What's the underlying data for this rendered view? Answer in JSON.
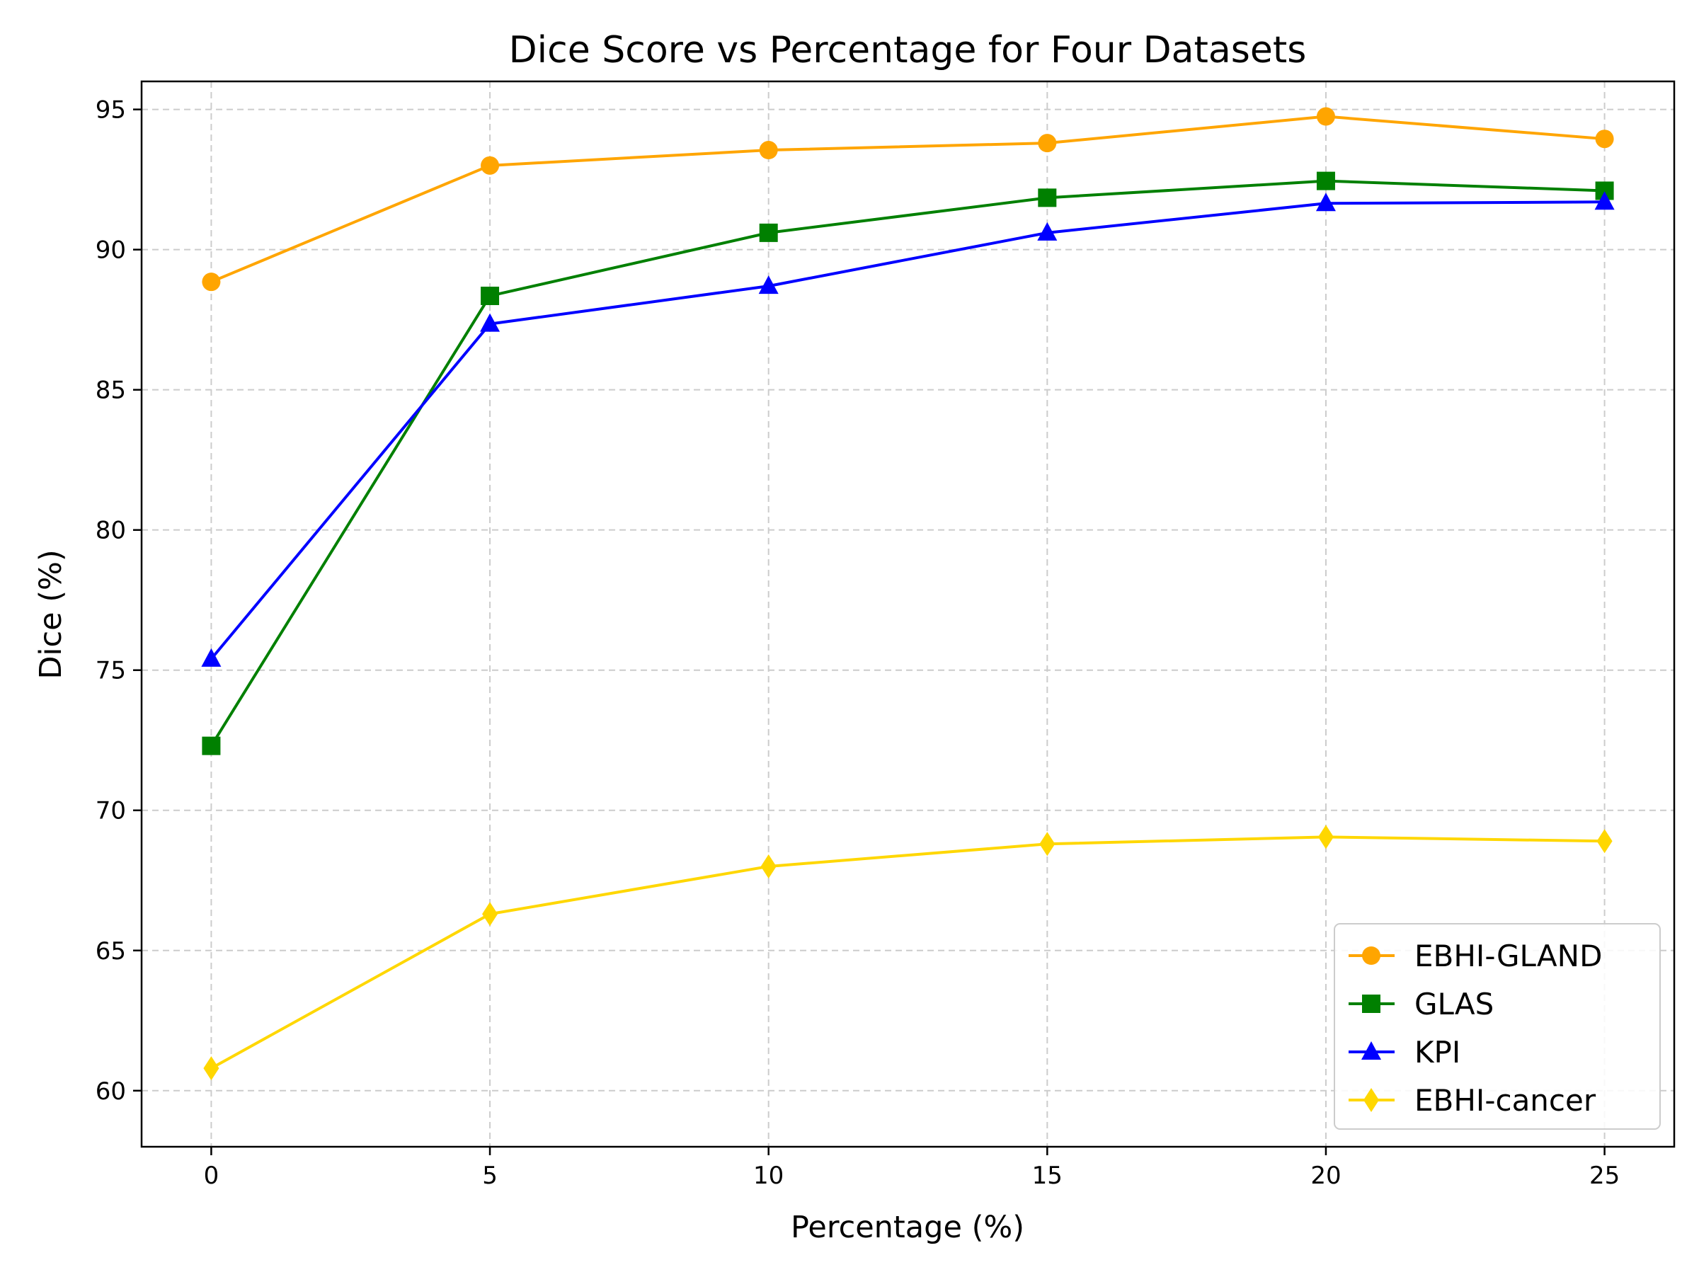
{
  "chart_data": {
    "type": "line",
    "title": "Dice Score vs Percentage for Four Datasets",
    "xlabel": "Percentage (%)",
    "ylabel": "Dice (%)",
    "x": [
      0,
      5,
      10,
      15,
      20,
      25
    ],
    "xlim": [
      -1.25,
      26.25
    ],
    "ylim": [
      58,
      96
    ],
    "x_ticks": [
      0,
      5,
      10,
      15,
      20,
      25
    ],
    "y_ticks": [
      60,
      65,
      70,
      75,
      80,
      85,
      90,
      95
    ],
    "x_tick_labels": [
      "0",
      "5",
      "10",
      "15",
      "20",
      "25"
    ],
    "y_tick_labels": [
      "60",
      "65",
      "70",
      "75",
      "80",
      "85",
      "90",
      "95"
    ],
    "grid": true,
    "legend_position": "lower-right",
    "series": [
      {
        "name": "EBHI-GLAND",
        "color": "#FFA500",
        "marker": "circle",
        "values": [
          88.85,
          93.0,
          93.55,
          93.8,
          94.75,
          93.95
        ]
      },
      {
        "name": "GLAS",
        "color": "#008000",
        "marker": "square",
        "values": [
          72.3,
          88.35,
          90.6,
          91.85,
          92.45,
          92.1
        ]
      },
      {
        "name": "KPI",
        "color": "#0000FF",
        "marker": "triangle",
        "values": [
          75.4,
          87.35,
          88.7,
          90.6,
          91.65,
          91.7
        ]
      },
      {
        "name": "EBHI-cancer",
        "color": "#FFD700",
        "marker": "diamond",
        "values": [
          60.8,
          66.3,
          68.0,
          68.8,
          69.05,
          68.9
        ]
      }
    ]
  }
}
